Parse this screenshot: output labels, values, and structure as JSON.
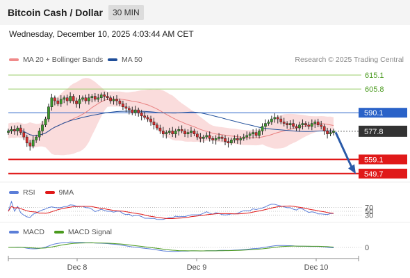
{
  "header": {
    "title": "Bitcoin Cash / Dollar",
    "timeframe": "30 MIN",
    "datetime": "Wednesday, December 10, 2025 4:03:44 AM CET"
  },
  "legend": {
    "ma_bb": "MA 20 + Bollinger Bands",
    "ma50": "MA 50",
    "credit": "Research © 2025 Trading Central"
  },
  "colors": {
    "bollinger": "#f9d3d3",
    "ma20": "#e88080",
    "ma50": "#1f4e99",
    "resistance": "#9acd6a",
    "pivot": "#2a62c8",
    "support": "#e01919",
    "last": "#333333",
    "rsi": "#5b7ed8",
    "ma9": "#e01919",
    "macd": "#5b7ed8",
    "signal": "#4a9a1e"
  },
  "chart_data": {
    "type": "candlestick",
    "x_ticks": [
      "Dec 8",
      "Dec 9",
      "Dec 10"
    ],
    "levels": [
      {
        "value": 615.1,
        "label": "615.1",
        "kind": "resistance"
      },
      {
        "value": 605.8,
        "label": "605.8",
        "kind": "resistance"
      },
      {
        "value": 590.1,
        "label": "590.1",
        "kind": "pivot"
      },
      {
        "value": 577.8,
        "label": "577.8",
        "kind": "last"
      },
      {
        "value": 559.1,
        "label": "559.1",
        "kind": "support"
      },
      {
        "value": 549.7,
        "label": "549.7",
        "kind": "support"
      }
    ],
    "close": [
      578,
      579,
      578,
      580,
      577,
      574,
      570,
      568,
      572,
      574,
      578,
      582,
      586,
      594,
      600,
      598,
      596,
      599,
      600,
      598,
      601,
      598,
      596,
      599,
      600,
      598,
      600,
      601,
      599,
      600,
      602,
      601,
      600,
      598,
      599,
      598,
      596,
      594,
      593,
      592,
      590,
      592,
      590,
      588,
      587,
      586,
      584,
      582,
      580,
      578,
      576,
      577,
      578,
      576,
      578,
      579,
      578,
      576,
      577,
      578,
      576,
      574,
      573,
      574,
      575,
      573,
      572,
      573,
      574,
      573,
      571,
      570,
      572,
      573,
      572,
      573,
      574,
      575,
      576,
      577,
      575,
      578,
      581,
      583,
      584,
      586,
      587,
      586,
      584,
      583,
      582,
      583,
      581,
      580,
      582,
      583,
      582,
      581,
      583,
      584,
      582,
      581,
      578,
      576,
      577,
      578
    ],
    "rsi": {
      "label": "RSI",
      "ma_label": "9MA",
      "levels": [
        70,
        50,
        30
      ]
    },
    "macd": {
      "label": "MACD",
      "signal_label": "MACD Signal",
      "zero": 0
    }
  }
}
